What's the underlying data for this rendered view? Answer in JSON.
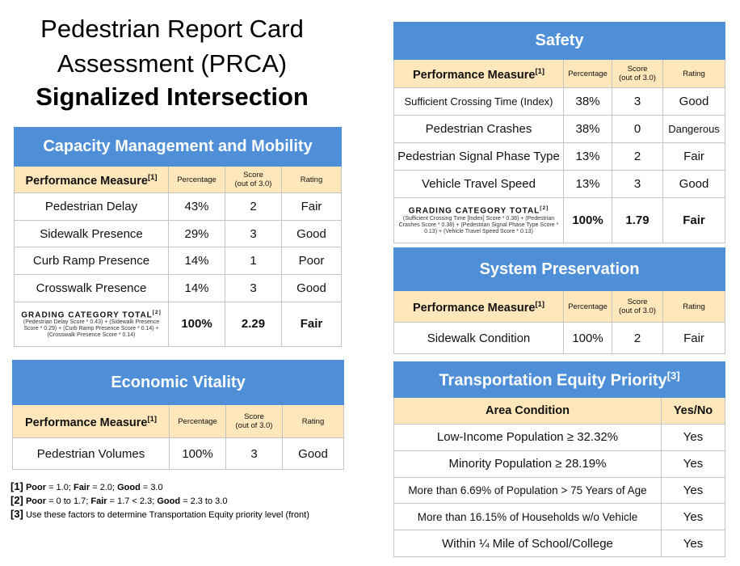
{
  "title": {
    "line1": "Pedestrian Report Card",
    "line2": "Assessment (PRCA)",
    "line3": "Signalized Intersection"
  },
  "tables": [
    {
      "title": "Capacity Management and Mobility",
      "header": {
        "measure": "Performance Measure",
        "note": "[1]",
        "percentage": "Percentage",
        "score": [
          "Score",
          "(out of 3.0)"
        ],
        "rating": "Rating"
      },
      "rows": [
        [
          "Pedestrian Delay",
          "43%",
          "2",
          "Fair"
        ],
        [
          "Sidewalk Presence",
          "29%",
          "3",
          "Good"
        ],
        [
          "Curb Ramp Presence",
          "14%",
          "1",
          "Poor"
        ],
        [
          "Crosswalk Presence",
          "14%",
          "3",
          "Good"
        ]
      ],
      "total": {
        "label": "GRADING CATEGORY TOTAL",
        "note": "[2]",
        "formula": "(Pedestrian Delay Score * 0.43) + (Sidewalk Presence Score * 0.29) + (Curb Ramp Presence Score * 0.14) + (Crosswalk Presence Score * 0.14)",
        "percentage": "100%",
        "score": "2.29",
        "rating": "Fair"
      }
    },
    {
      "title": "Economic Vitality",
      "header": {
        "measure": "Performance Measure",
        "note": "[1]",
        "percentage": "Percentage",
        "score": [
          "Score",
          "(out of 3.0)"
        ],
        "rating": "Rating"
      },
      "rows": [
        [
          "Pedestrian Volumes",
          "100%",
          "3",
          "Good"
        ]
      ]
    },
    {
      "title": "Safety",
      "header": {
        "measure": "Performance Measure",
        "note": "[1]",
        "percentage": "Percentage",
        "score": [
          "Score",
          "(out of 3.0)"
        ],
        "rating": "Rating"
      },
      "rows": [
        [
          "Sufficient Crossing Time (Index)",
          "38%",
          "3",
          "Good"
        ],
        [
          "Pedestrian Crashes",
          "38%",
          "0",
          "Dangerous"
        ],
        [
          "Pedestrian Signal Phase Type",
          "13%",
          "2",
          "Fair"
        ],
        [
          "Vehicle Travel Speed",
          "13%",
          "3",
          "Good"
        ]
      ],
      "total": {
        "label": "GRADING CATEGORY TOTAL",
        "note": "[2]",
        "formula": "(Sufficient Crossing Time [Index] Score * 0.38) + (Pedestrian Crashes Score * 0.38) + (Pedestrian Signal Phase Type Score * 0.13) + (Vehicle Travel Speed Score * 0.13)",
        "percentage": "100%",
        "score": "1.79",
        "rating": "Fair"
      }
    },
    {
      "title": "System Preservation",
      "header": {
        "measure": "Performance Measure",
        "note": "[1]",
        "percentage": "Percentage",
        "score": [
          "Score",
          "(out of 3.0)"
        ],
        "rating": "Rating"
      },
      "rows": [
        [
          "Sidewalk Condition",
          "100%",
          "2",
          "Fair"
        ]
      ]
    },
    {
      "title": "Transportation Equity Priority",
      "title_note": "[3]",
      "header": [
        "Area Condition",
        "Yes/No"
      ],
      "rows": [
        [
          "Low-Income Population ≥ 32.32%",
          "Yes"
        ],
        [
          "Minority Population ≥ 28.19%",
          "Yes"
        ],
        [
          "More than 6.69% of Population > 75 Years of Age",
          "Yes"
        ],
        [
          "More than 16.15% of Households w/o Vehicle",
          "Yes"
        ],
        [
          "Within ¼ Mile of School/College",
          "Yes"
        ]
      ]
    }
  ],
  "footnotes": [
    {
      "mark": "[1]",
      "parts": [
        {
          "text": "Poor",
          "bold": true
        },
        {
          "text": " = 1.0; ",
          "bold": false
        },
        {
          "text": "Fair",
          "bold": true
        },
        {
          "text": " = 2.0; ",
          "bold": false
        },
        {
          "text": "Good",
          "bold": true
        },
        {
          "text": " = 3.0",
          "bold": false
        }
      ]
    },
    {
      "mark": "[2]",
      "parts": [
        {
          "text": "Poor",
          "bold": true
        },
        {
          "text": " = 0 to 1.7; ",
          "bold": false
        },
        {
          "text": "Fair",
          "bold": true
        },
        {
          "text": " = 1.7 < 2.3; ",
          "bold": false
        },
        {
          "text": "Good",
          "bold": true
        },
        {
          "text": " = 2.3 to 3.0",
          "bold": false
        }
      ]
    },
    {
      "mark": "[3]",
      "parts": [
        {
          "text": "Use these factors to determine Transportation Equity priority level (front)",
          "bold": false
        }
      ]
    }
  ]
}
